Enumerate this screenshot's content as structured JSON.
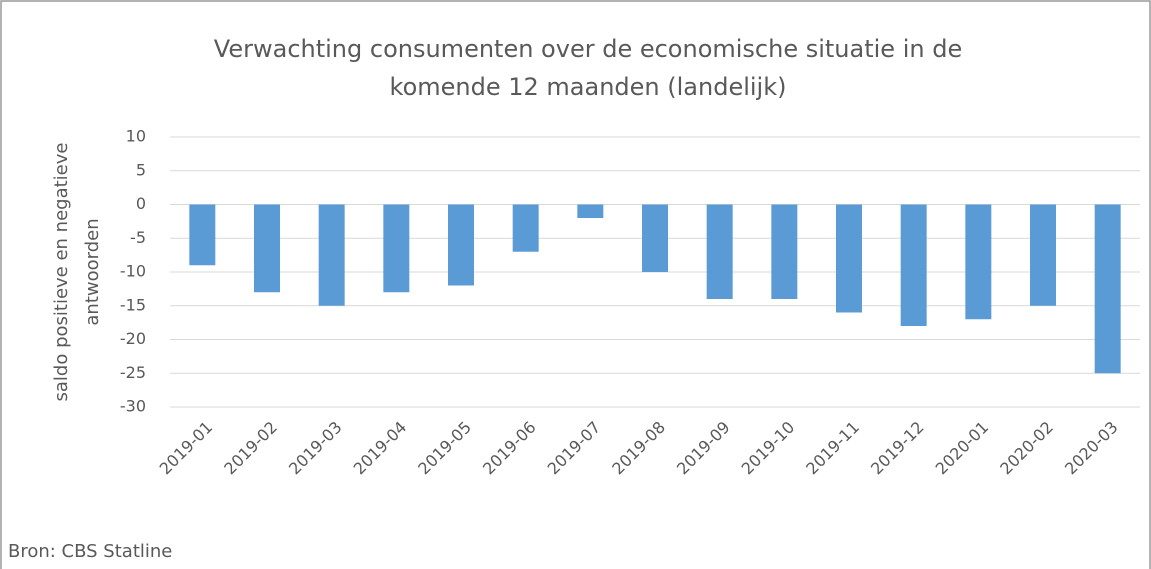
{
  "chart_data": {
    "type": "bar",
    "title": [
      "Verwachting consumenten over de economische situatie in de",
      "komende 12 maanden (landelijk)"
    ],
    "y_label": [
      "saldo positieve en negatieve",
      "antwoorden"
    ],
    "categories": [
      "2019-01",
      "2019-02",
      "2019-03",
      "2019-04",
      "2019-05",
      "2019-06",
      "2019-07",
      "2019-08",
      "2019-09",
      "2019-10",
      "2019-11",
      "2019-12",
      "2020-01",
      "2020-02",
      "2020-03"
    ],
    "values": [
      -9,
      -13,
      -15,
      -13,
      -12,
      -7,
      -2,
      -10,
      -14,
      -14,
      -16,
      -18,
      -17,
      -15,
      -25
    ],
    "color": "#5b9bd5",
    "ylim": [
      -30,
      10
    ],
    "yticks": [
      -30,
      -25,
      -20,
      -15,
      -10,
      -5,
      0,
      5,
      10
    ],
    "grid": true,
    "source": "Bron: CBS Statline"
  }
}
